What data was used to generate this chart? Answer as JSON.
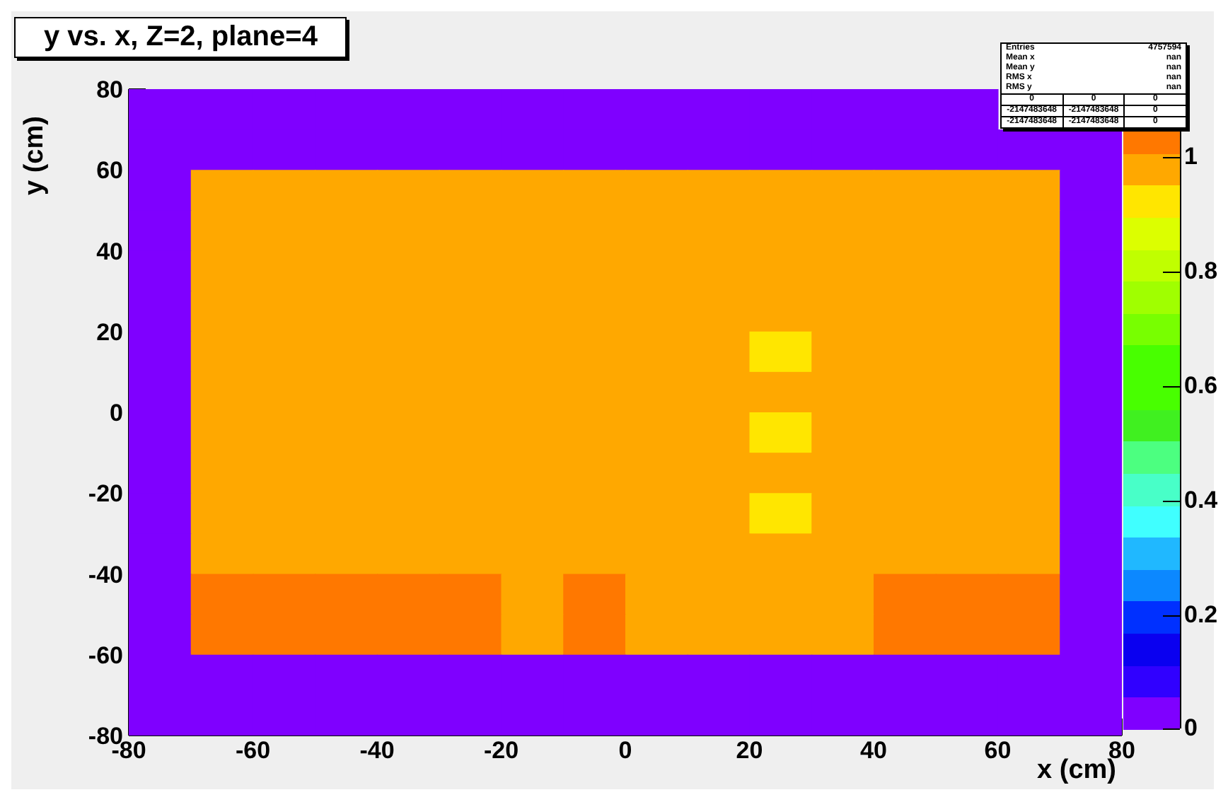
{
  "chart_data": {
    "type": "heatmap",
    "title": "y vs. x, Z=2, plane=4",
    "xlabel": "x (cm)",
    "ylabel": "y (cm)",
    "x": [
      -75,
      -65,
      -55,
      -45,
      -35,
      -25,
      -15,
      -5,
      5,
      15,
      25,
      35,
      45,
      55,
      65,
      75
    ],
    "xlim": [
      -80,
      80
    ],
    "ylim": [
      -80,
      80
    ],
    "xticks": [
      -80,
      -60,
      -40,
      -20,
      0,
      20,
      40,
      60,
      80
    ],
    "yticks": [
      -80,
      -60,
      -40,
      -20,
      0,
      20,
      40,
      60,
      80
    ],
    "clim": [
      0,
      1.12
    ],
    "cticks": [
      0,
      0.2,
      0.4,
      0.6,
      0.8,
      1
    ],
    "colors": [
      "#7f00ff",
      "#3000ff",
      "#0a00f0",
      "#0030ff",
      "#0c88ff",
      "#20b8ff",
      "#40ffff",
      "#48ffc8",
      "#4cff80",
      "#40f020",
      "#48ff00",
      "#48ff00",
      "#78ff00",
      "#a0ff00",
      "#c0ff00",
      "#dcff00",
      "#ffe600",
      "#ffa800",
      "#ff7800",
      "#ff3c00"
    ],
    "cells": [
      [
        0,
        0,
        0,
        0,
        0,
        0,
        0,
        0,
        0,
        0,
        0,
        0,
        0,
        0,
        null,
        null
      ],
      [
        0,
        0,
        0,
        0,
        0,
        0,
        0,
        0,
        0,
        0,
        0,
        0,
        0,
        0,
        0,
        0
      ],
      [
        0,
        0.98,
        0.98,
        0.98,
        0.98,
        0.98,
        0.98,
        0.98,
        0.98,
        0.98,
        0.98,
        0.98,
        0.98,
        0.98,
        0.98,
        0
      ],
      [
        0,
        0.98,
        0.98,
        0.98,
        0.98,
        0.98,
        0.98,
        0.98,
        0.98,
        0.98,
        0.98,
        0.98,
        0.98,
        0.98,
        0.98,
        0
      ],
      [
        0,
        0.98,
        0.98,
        0.98,
        0.98,
        0.98,
        0.98,
        0.98,
        0.98,
        0.98,
        0.98,
        0.98,
        0.98,
        0.98,
        0.98,
        0
      ],
      [
        0,
        0.98,
        0.98,
        0.98,
        0.98,
        0.98,
        0.98,
        0.98,
        0.98,
        0.98,
        0.98,
        0.98,
        0.98,
        0.98,
        0.98,
        0
      ],
      [
        0,
        0.98,
        0.98,
        0.98,
        0.98,
        0.98,
        0.98,
        0.98,
        0.98,
        0.98,
        0.92,
        0.98,
        0.98,
        0.98,
        0.98,
        0
      ],
      [
        0,
        0.98,
        0.98,
        0.98,
        0.98,
        0.98,
        0.98,
        0.98,
        0.98,
        0.98,
        0.98,
        0.98,
        0.98,
        0.98,
        0.98,
        0
      ],
      [
        0,
        0.98,
        0.98,
        0.98,
        0.98,
        0.98,
        0.98,
        0.98,
        0.98,
        0.98,
        0.92,
        0.98,
        0.98,
        0.98,
        0.98,
        0
      ],
      [
        0,
        0.98,
        0.98,
        0.98,
        0.98,
        0.98,
        0.98,
        0.98,
        0.98,
        0.98,
        0.98,
        0.98,
        0.98,
        0.98,
        0.98,
        0
      ],
      [
        0,
        0.98,
        0.98,
        0.98,
        0.98,
        0.98,
        0.98,
        0.98,
        0.98,
        0.98,
        0.92,
        0.98,
        0.98,
        0.98,
        0.98,
        0
      ],
      [
        0,
        0.98,
        0.98,
        0.98,
        0.98,
        0.98,
        0.98,
        0.98,
        0.98,
        0.98,
        0.98,
        0.98,
        0.98,
        0.98,
        0.98,
        0
      ],
      [
        0,
        1.04,
        1.04,
        1.04,
        1.04,
        1.04,
        0.98,
        1.04,
        0.98,
        0.98,
        0.98,
        0.98,
        1.04,
        1.04,
        1.04,
        0
      ],
      [
        0,
        1.04,
        1.04,
        1.04,
        1.04,
        1.04,
        0.98,
        1.04,
        0.98,
        0.98,
        0.98,
        0.98,
        1.04,
        1.04,
        1.04,
        0
      ],
      [
        0,
        0,
        0,
        0,
        0,
        0,
        0,
        0,
        0,
        0,
        0,
        0,
        0,
        0,
        0,
        0
      ],
      [
        0,
        0,
        0,
        0,
        0,
        0,
        0,
        0,
        0,
        0,
        0,
        0,
        0,
        0,
        0,
        0
      ]
    ],
    "annotations": [
      "Entries",
      "4757594",
      "Mean x",
      "nan",
      "Mean y",
      "nan",
      "RMS x",
      "nan",
      "RMS y",
      "nan",
      "0",
      "0",
      "0",
      "-2147483648",
      "-2147483648",
      "0",
      "-2147483648",
      "-2147483648",
      "0"
    ]
  }
}
